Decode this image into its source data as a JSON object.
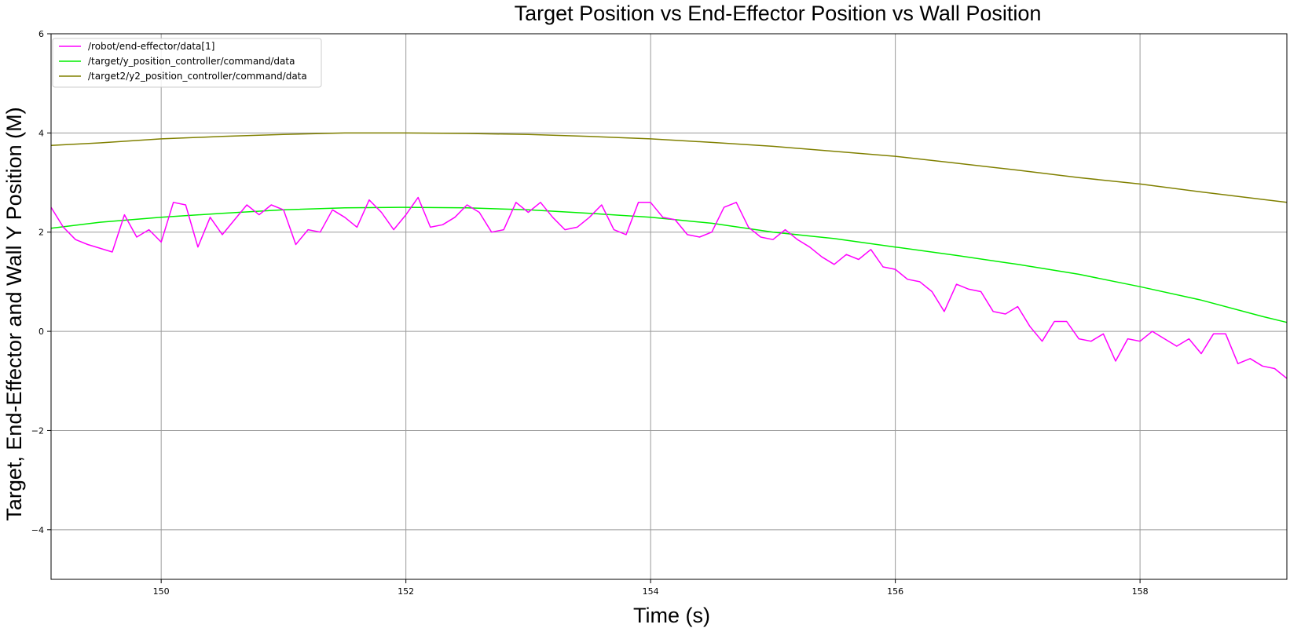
{
  "chart_data": {
    "type": "line",
    "title": "Target Position vs End-Effector Position vs Wall Position",
    "xlabel": "Time (s)",
    "ylabel": "Target, End-Effector and Wall Y Position (M)",
    "xlim": [
      149.1,
      159.2
    ],
    "ylim": [
      -5,
      6
    ],
    "x_ticks": [
      150,
      152,
      154,
      156,
      158
    ],
    "y_ticks": [
      -4,
      -2,
      0,
      2,
      4,
      6
    ],
    "x_tick_labels": [
      "150",
      "152",
      "154",
      "156",
      "158"
    ],
    "y_tick_labels": [
      "−4",
      "−2",
      "0",
      "2",
      "4",
      "6"
    ],
    "grid": true,
    "legend_position": "top-left",
    "series": [
      {
        "name": "/robot/end-effector/data[1]",
        "color": "#ff00ff",
        "x": [
          149.1,
          149.2,
          149.3,
          149.4,
          149.6,
          149.7,
          149.8,
          149.9,
          150.0,
          150.1,
          150.2,
          150.3,
          150.4,
          150.5,
          150.6,
          150.7,
          150.8,
          150.9,
          151.0,
          151.1,
          151.2,
          151.3,
          151.4,
          151.5,
          151.6,
          151.7,
          151.8,
          151.9,
          152.0,
          152.1,
          152.2,
          152.3,
          152.4,
          152.5,
          152.6,
          152.7,
          152.8,
          152.9,
          153.0,
          153.1,
          153.2,
          153.3,
          153.4,
          153.5,
          153.6,
          153.7,
          153.8,
          153.9,
          154.0,
          154.1,
          154.2,
          154.3,
          154.4,
          154.5,
          154.6,
          154.7,
          154.8,
          154.9,
          155.0,
          155.1,
          155.2,
          155.3,
          155.4,
          155.5,
          155.6,
          155.7,
          155.8,
          155.9,
          156.0,
          156.1,
          156.2,
          156.3,
          156.4,
          156.5,
          156.6,
          156.7,
          156.8,
          156.9,
          157.0,
          157.1,
          157.2,
          157.3,
          157.4,
          157.5,
          157.6,
          157.7,
          157.8,
          157.9,
          158.0,
          158.1,
          158.2,
          158.3,
          158.4,
          158.5,
          158.6,
          158.7,
          158.8,
          158.9,
          159.0,
          159.1,
          159.2
        ],
        "values": [
          2.5,
          2.1,
          1.85,
          1.75,
          1.6,
          2.35,
          1.9,
          2.05,
          1.8,
          2.6,
          2.55,
          1.7,
          2.3,
          1.95,
          2.25,
          2.55,
          2.35,
          2.55,
          2.45,
          1.75,
          2.05,
          2.0,
          2.45,
          2.3,
          2.1,
          2.65,
          2.4,
          2.05,
          2.35,
          2.7,
          2.1,
          2.15,
          2.3,
          2.55,
          2.4,
          2.0,
          2.05,
          2.6,
          2.4,
          2.6,
          2.3,
          2.05,
          2.1,
          2.3,
          2.55,
          2.05,
          1.95,
          2.6,
          2.6,
          2.3,
          2.25,
          1.95,
          1.9,
          2.0,
          2.5,
          2.6,
          2.1,
          1.9,
          1.85,
          2.05,
          1.85,
          1.7,
          1.5,
          1.35,
          1.55,
          1.45,
          1.65,
          1.3,
          1.25,
          1.05,
          1.0,
          0.8,
          0.4,
          0.95,
          0.85,
          0.8,
          0.4,
          0.35,
          0.5,
          0.1,
          -0.2,
          0.2,
          0.2,
          -0.15,
          -0.2,
          -0.05,
          -0.6,
          -0.15,
          -0.2,
          0.0,
          -0.15,
          -0.3,
          -0.15,
          -0.45,
          -0.05,
          -0.05,
          -0.65,
          -0.55,
          -0.7,
          -0.75,
          -0.95
        ]
      },
      {
        "name": "/target/y_position_controller/command/data",
        "color": "#00ee00",
        "x": [
          149.1,
          149.5,
          150.0,
          150.5,
          151.0,
          151.5,
          152.0,
          152.5,
          153.0,
          153.5,
          154.0,
          154.5,
          155.0,
          155.5,
          156.0,
          156.5,
          157.0,
          157.5,
          158.0,
          158.5,
          159.0,
          159.2
        ],
        "values": [
          2.08,
          2.2,
          2.3,
          2.38,
          2.45,
          2.49,
          2.5,
          2.49,
          2.45,
          2.38,
          2.3,
          2.18,
          2.0,
          1.87,
          1.7,
          1.53,
          1.35,
          1.15,
          0.9,
          0.63,
          0.3,
          0.18
        ]
      },
      {
        "name": "/target2/y2_position_controller/command/data",
        "color": "#808000",
        "x": [
          149.1,
          149.5,
          150.0,
          150.5,
          151.0,
          151.5,
          152.0,
          152.5,
          153.0,
          153.5,
          154.0,
          154.5,
          155.0,
          155.5,
          156.0,
          156.5,
          157.0,
          157.5,
          158.0,
          158.5,
          159.0,
          159.2
        ],
        "values": [
          3.75,
          3.8,
          3.88,
          3.93,
          3.97,
          4.0,
          4.0,
          3.99,
          3.97,
          3.93,
          3.88,
          3.81,
          3.73,
          3.63,
          3.53,
          3.39,
          3.25,
          3.1,
          2.97,
          2.81,
          2.66,
          2.6
        ]
      }
    ]
  }
}
